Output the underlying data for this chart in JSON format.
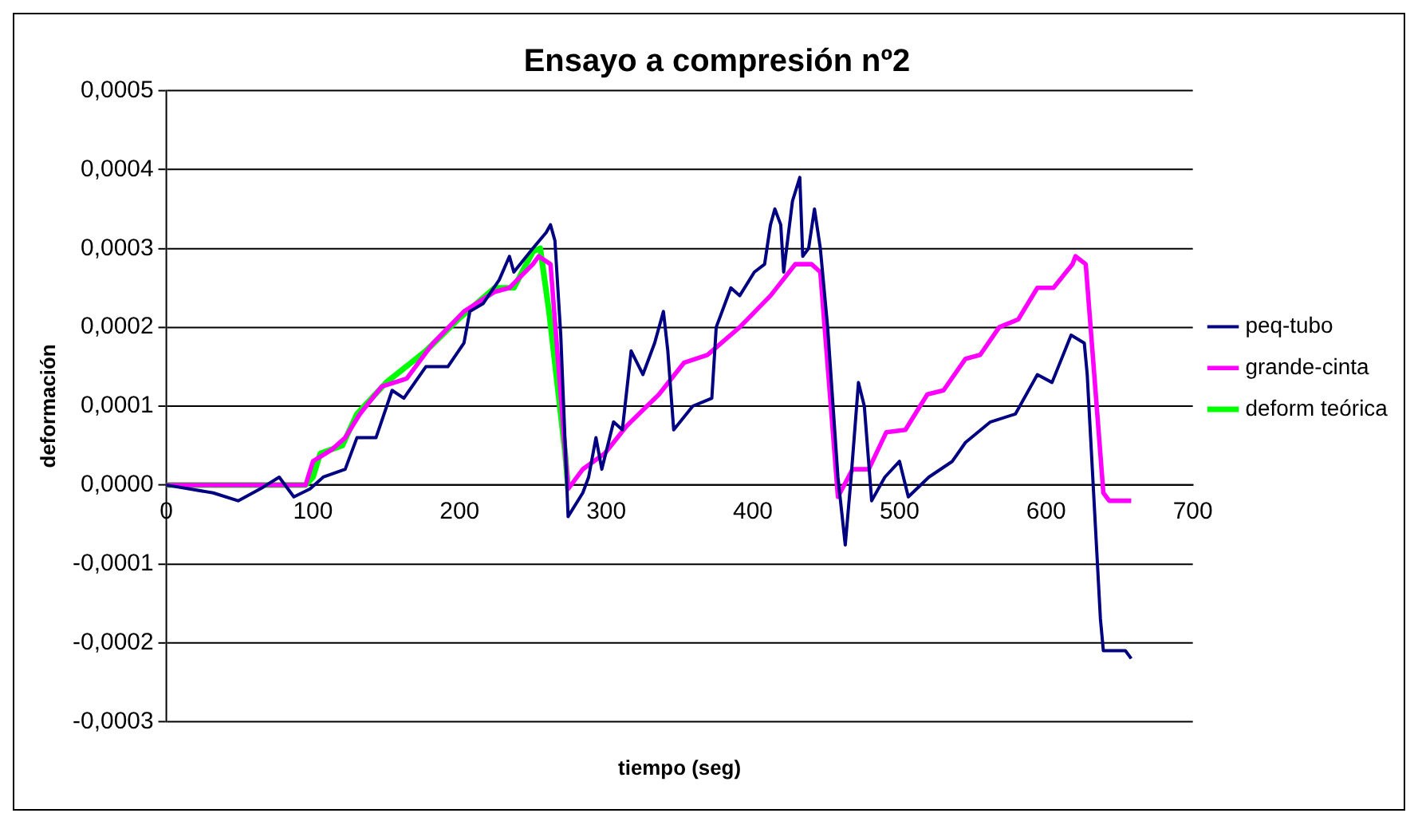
{
  "chart_data": {
    "type": "line",
    "title": "Ensayo a compresión nº2",
    "xlabel": "tiempo (seg)",
    "ylabel": "deformación",
    "xlim": [
      0,
      700
    ],
    "xticks": [
      0,
      100,
      200,
      300,
      400,
      500,
      600,
      700
    ],
    "ylim": [
      -0.0003,
      0.0005
    ],
    "yticks": [
      {
        "value": -0.0003,
        "label": "-0,0003"
      },
      {
        "value": -0.0002,
        "label": "-0,0002"
      },
      {
        "value": -0.0001,
        "label": "-0,0001"
      },
      {
        "value": 0,
        "label": "0,0000"
      },
      {
        "value": 0.0001,
        "label": "0,0001"
      },
      {
        "value": 0.0002,
        "label": "0,0002"
      },
      {
        "value": 0.0003,
        "label": "0,0003"
      },
      {
        "value": 0.0004,
        "label": "0,0004"
      },
      {
        "value": 0.0005,
        "label": "0,0005"
      }
    ],
    "grid": "y",
    "legend": "right",
    "marker": "none",
    "line_style": "solid",
    "series": [
      {
        "name": "peq-tubo",
        "color": "#000080",
        "x": [
          0,
          32,
          49,
          64,
          77,
          87,
          98,
          107,
          122,
          130,
          143,
          154,
          162,
          177,
          192,
          203,
          207,
          216,
          227,
          234,
          237,
          250,
          259,
          262,
          265,
          269,
          274,
          284,
          288,
          293,
          297,
          305,
          311,
          317,
          325,
          333,
          339,
          342,
          346,
          359,
          372,
          375,
          385,
          391,
          401,
          408,
          412,
          415,
          419,
          421,
          427,
          432,
          434,
          438,
          442,
          446,
          451,
          458,
          463,
          467,
          472,
          476,
          481,
          490,
          500,
          506,
          520,
          536,
          545,
          562,
          579,
          594,
          604,
          617,
          626,
          628,
          637,
          639,
          654,
          658
        ],
        "values": [
          0,
          -1e-05,
          -2e-05,
          -5e-06,
          1e-05,
          -1.5e-05,
          -5e-06,
          1e-05,
          2e-05,
          6e-05,
          6e-05,
          0.00012,
          0.00011,
          0.00015,
          0.00015,
          0.00018,
          0.00022,
          0.00023,
          0.00026,
          0.00029,
          0.00027,
          0.0003,
          0.00032,
          0.00033,
          0.00031,
          0.00019,
          -4e-05,
          -1e-05,
          1e-05,
          6e-05,
          2e-05,
          8e-05,
          7e-05,
          0.00017,
          0.00014,
          0.00018,
          0.00022,
          0.00017,
          7e-05,
          0.0001,
          0.00011,
          0.0002,
          0.00025,
          0.00024,
          0.00027,
          0.00028,
          0.00033,
          0.00035,
          0.00033,
          0.00027,
          0.00036,
          0.00039,
          0.00029,
          0.0003,
          0.00035,
          0.0003,
          0.0002,
          1e-05,
          -7.6e-05,
          1e-05,
          0.00013,
          0.0001,
          -2e-05,
          1e-05,
          3e-05,
          -1.5e-05,
          1e-05,
          3e-05,
          5.4e-05,
          8e-05,
          9e-05,
          0.00014,
          0.00013,
          0.00019,
          0.00018,
          0.00014,
          -0.00017,
          -0.00021,
          -0.00021,
          -0.00022
        ]
      },
      {
        "name": "grande-cinta",
        "color": "#ff00ff",
        "x": [
          0,
          95,
          100,
          113,
          122,
          132,
          147,
          164,
          182,
          203,
          224,
          234,
          250,
          254,
          262,
          274,
          284,
          299,
          314,
          336,
          353,
          369,
          391,
          412,
          429,
          440,
          446,
          458,
          468,
          479,
          491,
          504,
          519,
          530,
          545,
          555,
          568,
          581,
          594,
          605,
          618,
          620,
          627,
          639,
          643,
          658
        ],
        "values": [
          0,
          0,
          3e-05,
          4.5e-05,
          6e-05,
          9e-05,
          0.000125,
          0.000135,
          0.00018,
          0.00022,
          0.000245,
          0.00025,
          0.00028,
          0.00029,
          0.00028,
          -5e-06,
          2e-05,
          4e-05,
          7.5e-05,
          0.000115,
          0.000155,
          0.000165,
          0.0002,
          0.00024,
          0.00028,
          0.00028,
          0.00027,
          -1.5e-05,
          2e-05,
          2e-05,
          6.7e-05,
          7e-05,
          0.000115,
          0.00012,
          0.00016,
          0.000165,
          0.0002,
          0.00021,
          0.00025,
          0.00025,
          0.00028,
          0.00029,
          0.00028,
          -1e-05,
          -2e-05,
          -2e-05
        ]
      },
      {
        "name": "deform teórica",
        "color": "#00ff00",
        "x": [
          0,
          95,
          100,
          105,
          120,
          130,
          150,
          177,
          199,
          224,
          237,
          250,
          255,
          261,
          272,
          274
        ],
        "values": [
          0,
          0,
          1e-05,
          4e-05,
          5e-05,
          9e-05,
          0.00013,
          0.00017,
          0.00021,
          0.00025,
          0.00025,
          0.000296,
          0.0003,
          0.00022,
          4e-05,
          -5e-06
        ]
      }
    ]
  }
}
